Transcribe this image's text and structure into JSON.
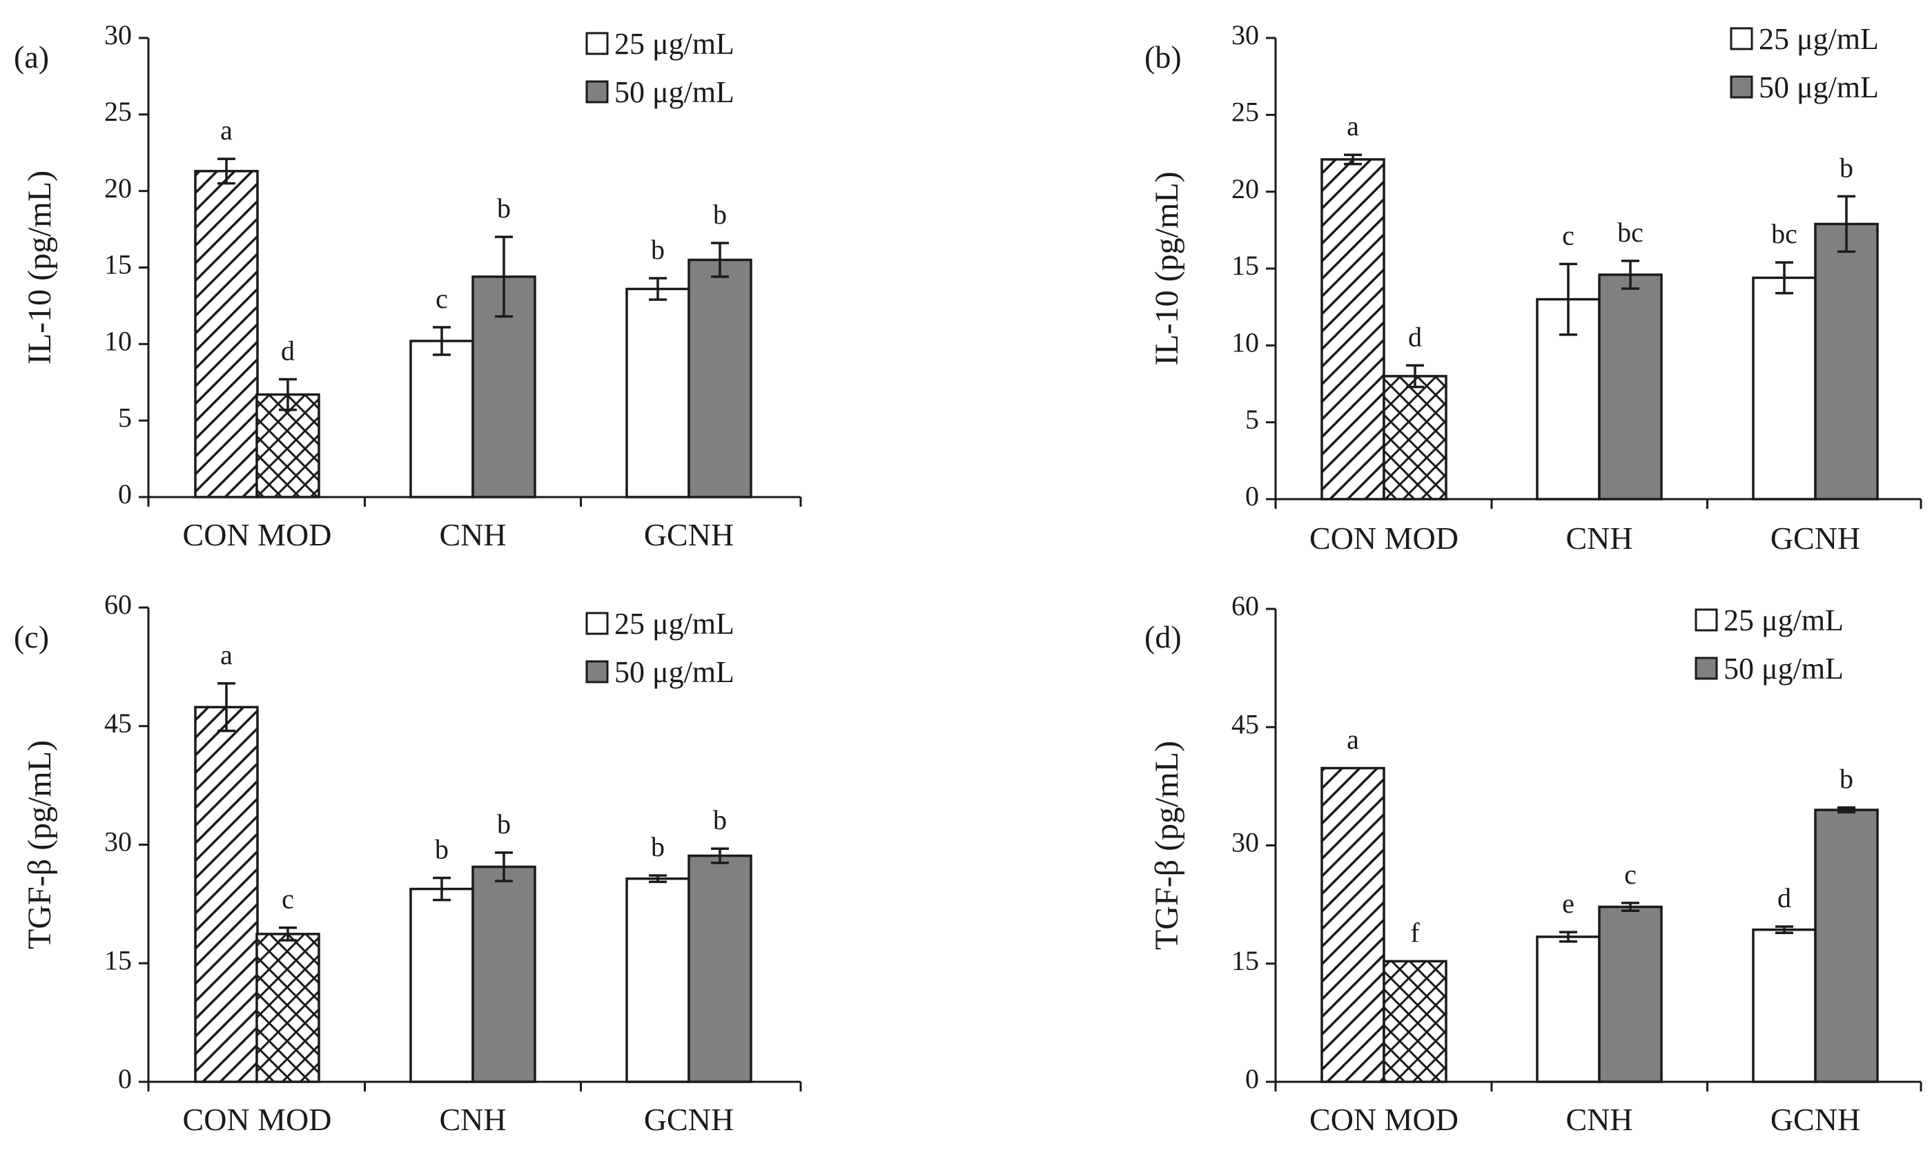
{
  "legend": {
    "items": [
      {
        "label": "25 μg/mL",
        "fill": "#ffffff"
      },
      {
        "label": "50 μg/mL",
        "fill": "#808080"
      }
    ]
  },
  "colors": {
    "white_bar": "#ffffff",
    "gray_bar": "#808080",
    "ink": "#1a1a1a"
  },
  "chart_data": [
    {
      "panel": "(a)",
      "type": "bar",
      "ylabel": "IL-10 (pg/mL)",
      "ylim": [
        0,
        30
      ],
      "yticks": [
        0,
        5,
        10,
        15,
        20,
        25,
        30
      ],
      "category_labels": [
        "CON MOD",
        "CNH",
        "GCNH"
      ],
      "bars": [
        {
          "group": "CON",
          "fill": "hatch",
          "value": 21.3,
          "err": 0.8,
          "letter": "a"
        },
        {
          "group": "MOD",
          "fill": "cross",
          "value": 6.7,
          "err": 1.0,
          "letter": "d"
        },
        {
          "group": "CNH",
          "fill": "white",
          "value": 10.2,
          "err": 0.9,
          "letter": "c"
        },
        {
          "group": "CNH",
          "fill": "gray",
          "value": 14.4,
          "err": 2.6,
          "letter": "b"
        },
        {
          "group": "GCNH",
          "fill": "white",
          "value": 13.6,
          "err": 0.7,
          "letter": "b"
        },
        {
          "group": "GCNH",
          "fill": "gray",
          "value": 15.5,
          "err": 1.1,
          "letter": "b"
        }
      ]
    },
    {
      "panel": "(b)",
      "type": "bar",
      "ylabel": "IL-10 (pg/mL)",
      "ylim": [
        0,
        30
      ],
      "yticks": [
        0,
        5,
        10,
        15,
        20,
        25,
        30
      ],
      "category_labels": [
        "CON MOD",
        "CNH",
        "GCNH"
      ],
      "bars": [
        {
          "group": "CON",
          "fill": "hatch",
          "value": 22.1,
          "err": 0.3,
          "letter": "a"
        },
        {
          "group": "MOD",
          "fill": "cross",
          "value": 8.0,
          "err": 0.7,
          "letter": "d"
        },
        {
          "group": "CNH",
          "fill": "white",
          "value": 13.0,
          "err": 2.3,
          "letter": "c"
        },
        {
          "group": "CNH",
          "fill": "gray",
          "value": 14.6,
          "err": 0.9,
          "letter": "bc"
        },
        {
          "group": "GCNH",
          "fill": "white",
          "value": 14.4,
          "err": 1.0,
          "letter": "bc"
        },
        {
          "group": "GCNH",
          "fill": "gray",
          "value": 17.9,
          "err": 1.8,
          "letter": "b"
        }
      ]
    },
    {
      "panel": "(c)",
      "type": "bar",
      "ylabel": "TGF-β (pg/mL)",
      "ylim": [
        0,
        60
      ],
      "yticks": [
        0,
        15,
        30,
        45,
        60
      ],
      "category_labels": [
        "CON MOD",
        "CNH",
        "GCNH"
      ],
      "bars": [
        {
          "group": "CON",
          "fill": "hatch",
          "value": 47.4,
          "err": 3.0,
          "letter": "a"
        },
        {
          "group": "MOD",
          "fill": "cross",
          "value": 18.7,
          "err": 0.8,
          "letter": "c"
        },
        {
          "group": "CNH",
          "fill": "white",
          "value": 24.4,
          "err": 1.4,
          "letter": "b"
        },
        {
          "group": "CNH",
          "fill": "gray",
          "value": 27.2,
          "err": 1.8,
          "letter": "b"
        },
        {
          "group": "GCNH",
          "fill": "white",
          "value": 25.7,
          "err": 0.4,
          "letter": "b"
        },
        {
          "group": "GCNH",
          "fill": "gray",
          "value": 28.6,
          "err": 0.9,
          "letter": "b"
        }
      ]
    },
    {
      "panel": "(d)",
      "type": "bar",
      "ylabel": "TGF-β (pg/mL)",
      "ylim": [
        0,
        60
      ],
      "yticks": [
        0,
        15,
        30,
        45,
        60
      ],
      "category_labels": [
        "CON MOD",
        "CNH",
        "GCNH"
      ],
      "bars": [
        {
          "group": "CON",
          "fill": "hatch",
          "value": 39.8,
          "err": 0,
          "letter": "a"
        },
        {
          "group": "MOD",
          "fill": "cross",
          "value": 15.3,
          "err": 0,
          "letter": "f"
        },
        {
          "group": "CNH",
          "fill": "white",
          "value": 18.4,
          "err": 0.6,
          "letter": "e"
        },
        {
          "group": "CNH",
          "fill": "gray",
          "value": 22.2,
          "err": 0.5,
          "letter": "c"
        },
        {
          "group": "GCNH",
          "fill": "white",
          "value": 19.3,
          "err": 0.4,
          "letter": "d"
        },
        {
          "group": "GCNH",
          "fill": "gray",
          "value": 34.5,
          "err": 0.3,
          "letter": "b"
        }
      ]
    }
  ]
}
